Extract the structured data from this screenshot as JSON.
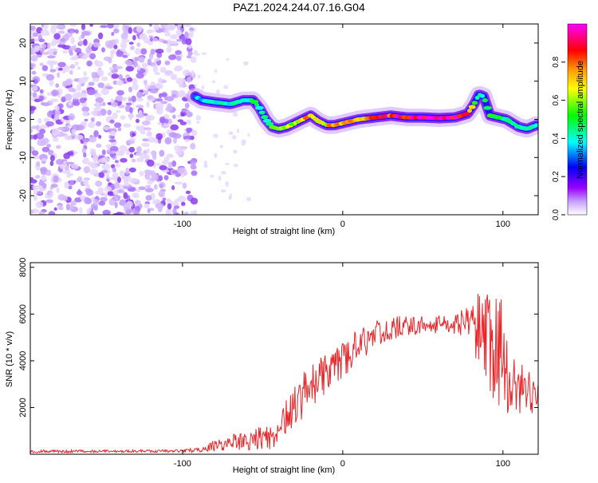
{
  "title": "PAZ1.2024.244.07.16.G04",
  "chart_data": [
    {
      "type": "heatmap",
      "xlabel": "Height of straight line (km)",
      "ylabel": "Frequency (Hz)",
      "xlim": [
        -195,
        122
      ],
      "ylim": [
        -25,
        25
      ],
      "x_ticks": [
        -100,
        0,
        100
      ],
      "x_tick_labels": [
        "-100",
        "0",
        "100"
      ],
      "y_ticks": [
        -20,
        -10,
        0,
        10,
        20
      ],
      "y_tick_labels": [
        "-20",
        "-10",
        "0",
        "10",
        "20"
      ],
      "colorbar": {
        "label": "Normalized spectral amplitude",
        "range": [
          0,
          1
        ],
        "ticks": [
          0.0,
          0.2,
          0.4,
          0.6,
          0.8
        ],
        "tick_labels": [
          "0.0",
          "0.2",
          "0.4",
          "0.6",
          "0.8"
        ],
        "colors": [
          "#ffffff",
          "#9a00ff",
          "#0000ff",
          "#00ffff",
          "#00ff00",
          "#ffff00",
          "#ff7f00",
          "#ff0000",
          "#ff00ff"
        ]
      },
      "noise_region": {
        "x_range": [
          -195,
          -92
        ],
        "level": 0.15
      },
      "ridge": {
        "x": [
          -92,
          -88,
          -80,
          -70,
          -62,
          -56,
          -52,
          -48,
          -44,
          -40,
          -35,
          -30,
          -25,
          -20,
          -15,
          -10,
          -5,
          0,
          10,
          20,
          30,
          40,
          50,
          60,
          70,
          78,
          82,
          85,
          88,
          92,
          97,
          102,
          106,
          110,
          115,
          121
        ],
        "y": [
          6,
          5,
          4.5,
          4,
          5,
          5,
          3,
          0,
          -2,
          -2.5,
          -2,
          -1,
          0,
          1,
          -0.5,
          -1.5,
          -1.5,
          -1,
          0,
          0.5,
          1,
          0.5,
          0.5,
          0.3,
          0.5,
          1.5,
          4,
          6.5,
          6,
          1,
          0.5,
          0,
          -1,
          -2,
          -2.5,
          -1.5
        ],
        "amplitude": [
          0.35,
          0.35,
          0.4,
          0.4,
          0.4,
          0.45,
          0.45,
          0.45,
          0.5,
          0.55,
          0.6,
          0.65,
          0.7,
          0.7,
          0.7,
          0.7,
          0.7,
          0.75,
          0.8,
          0.85,
          0.85,
          0.9,
          0.95,
          0.95,
          0.9,
          0.85,
          0.5,
          0.4,
          0.45,
          0.5,
          0.5,
          0.45,
          0.45,
          0.45,
          0.45,
          0.45
        ]
      }
    },
    {
      "type": "line",
      "xlabel": "Height of straight line (km)",
      "ylabel": "SNR (10 * v/v)",
      "xlim": [
        -195,
        122
      ],
      "ylim": [
        0,
        8200
      ],
      "x_ticks": [
        -100,
        0,
        100
      ],
      "x_tick_labels": [
        "-100",
        "0",
        "100"
      ],
      "y_ticks": [
        2000,
        4000,
        6000,
        8000
      ],
      "y_tick_labels": [
        "2000",
        "4000",
        "6000",
        "8000"
      ],
      "series": [
        {
          "color": "#e8262a",
          "envelope": {
            "x": [
              -195,
              -100,
              -86,
              -80,
              -70,
              -60,
              -55,
              -50,
              -45,
              -40,
              -35,
              -30,
              -25,
              -20,
              -10,
              0,
              10,
              20,
              30,
              40,
              50,
              60,
              70,
              80,
              84,
              88,
              92,
              96,
              100,
              105,
              110,
              115,
              121
            ],
            "mean": [
              120,
              140,
              200,
              350,
              500,
              650,
              700,
              650,
              700,
              1100,
              1600,
              2000,
              2500,
              2900,
              3500,
              4000,
              4700,
              5100,
              5400,
              5500,
              5550,
              5550,
              5600,
              5650,
              5400,
              5000,
              4600,
              4400,
              4200,
              3500,
              3000,
              2700,
              2600
            ],
            "spread": [
              60,
              60,
              150,
              250,
              350,
              450,
              550,
              500,
              500,
              650,
              800,
              900,
              950,
              950,
              900,
              800,
              700,
              600,
              500,
              450,
              400,
              400,
              450,
              700,
              1800,
              2000,
              2200,
              2400,
              2400,
              1800,
              1300,
              1000,
              800
            ]
          }
        }
      ]
    }
  ]
}
